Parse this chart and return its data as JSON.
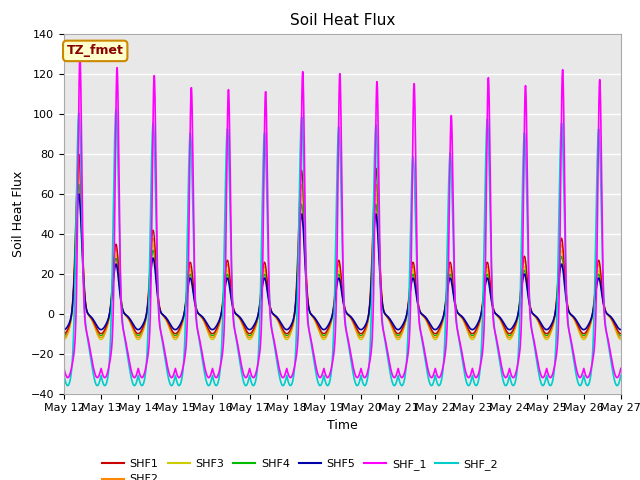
{
  "title": "Soil Heat Flux",
  "xlabel": "Time",
  "ylabel": "Soil Heat Flux",
  "ylim": [
    -40,
    140
  ],
  "x_tick_labels": [
    "May 12",
    "May 13",
    "May 14",
    "May 15",
    "May 16",
    "May 17",
    "May 18",
    "May 19",
    "May 20",
    "May 21",
    "May 22",
    "May 23",
    "May 24",
    "May 25",
    "May 26",
    "May 27"
  ],
  "series_colors": {
    "SHF1": "#cc0000",
    "SHF2": "#ff8800",
    "SHF3": "#cccc00",
    "SHF4": "#00bb00",
    "SHF5": "#0000aa",
    "SHF_1": "#ff00ff",
    "SHF_2": "#00cccc"
  },
  "annotation_text": "TZ_fmet",
  "annotation_bg": "#ffffcc",
  "annotation_border": "#cc8800",
  "annotation_text_color": "#880000",
  "fig_bg": "#ffffff",
  "plot_bg": "#e8e8e8",
  "grid_color": "#ffffff",
  "n_days": 15,
  "ppd": 288,
  "shf1_peaks": [
    80,
    35,
    42,
    26,
    27,
    26,
    72,
    27,
    73,
    26,
    26,
    26,
    29,
    38,
    27
  ],
  "shf2_peaks": [
    75,
    33,
    38,
    24,
    25,
    24,
    65,
    25,
    65,
    24,
    24,
    24,
    27,
    35,
    25
  ],
  "shf3_peaks": [
    70,
    30,
    35,
    22,
    22,
    22,
    60,
    22,
    60,
    22,
    22,
    22,
    24,
    32,
    22
  ],
  "shf4_peaks": [
    65,
    28,
    32,
    20,
    20,
    20,
    55,
    20,
    55,
    20,
    20,
    20,
    22,
    29,
    20
  ],
  "shf5_peaks": [
    60,
    25,
    28,
    18,
    18,
    18,
    50,
    18,
    50,
    18,
    18,
    18,
    20,
    25,
    18
  ],
  "shf_1_peaks": [
    135,
    130,
    126,
    120,
    119,
    118,
    128,
    127,
    123,
    122,
    106,
    125,
    121,
    129,
    124
  ],
  "shf_2_peaks": [
    110,
    112,
    105,
    100,
    102,
    100,
    108,
    103,
    104,
    88,
    90,
    107,
    100,
    105,
    102
  ],
  "night_min_shf1": -10,
  "night_min_shf2": -12,
  "night_min_shf3": -13,
  "night_min_shf4": -11,
  "night_min_shf5": -8,
  "night_min_shf_1": -32,
  "night_min_shf_2": -36
}
